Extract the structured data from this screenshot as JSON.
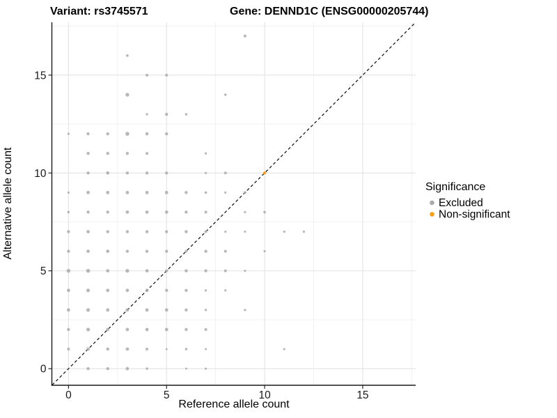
{
  "figure": {
    "title_left": "Variant: rs3745571",
    "title_right": "Gene: DENND1C (ENSG00000205744)"
  },
  "axes": {
    "x_label": "Reference allele count",
    "y_label": "Alternative allele count",
    "x_tick_labels": [
      "0",
      "5",
      "10",
      "15"
    ],
    "y_tick_labels": [
      "0",
      "5",
      "10",
      "15"
    ]
  },
  "legend": {
    "title": "Significance",
    "items": [
      {
        "label": "Excluded",
        "color": "#ababab"
      },
      {
        "label": "Non-significant",
        "color": "#fb9e17"
      }
    ]
  },
  "colors": {
    "excluded_point": "#ababab",
    "non_significant_point": "#fb9e17",
    "axis_line": "#1a1a1a",
    "identity_line": "#111111",
    "grid_major": "#e3e3e3",
    "grid_minor": "#efefef",
    "background": "#ffffff"
  },
  "chart_data": {
    "type": "scatter",
    "title": "Variant: rs3745571 — Gene: DENND1C (ENSG00000205744)",
    "xlabel": "Reference allele count",
    "ylabel": "Alternative allele count",
    "xlim": [
      -0.83,
      17.7
    ],
    "ylim": [
      -0.83,
      17.7
    ],
    "x_major_ticks": [
      0,
      5,
      10,
      15
    ],
    "y_major_ticks": [
      0,
      5,
      10,
      15
    ],
    "x_minor_ticks": [
      2.5,
      7.5,
      12.5,
      17.5
    ],
    "y_minor_ticks": [
      2.5,
      7.5,
      12.5,
      17.5
    ],
    "grid": true,
    "legend_position": "right",
    "identity_line": {
      "style": "dashed",
      "equation": "y = x"
    },
    "point_format": "[x, y, radius_px]",
    "series": [
      {
        "name": "Excluded",
        "color": "#ababab",
        "opacity": 0.85,
        "points": [
          [
            9,
            17,
            2.1
          ],
          [
            3,
            16,
            1.9
          ],
          [
            4,
            15,
            2.0
          ],
          [
            5,
            15,
            2.0
          ],
          [
            3,
            14,
            2.7
          ],
          [
            8,
            14,
            1.8
          ],
          [
            4,
            13,
            1.7
          ],
          [
            5,
            13,
            2.2
          ],
          [
            6,
            13,
            1.8
          ],
          [
            0,
            12,
            1.6
          ],
          [
            1,
            12,
            2.2
          ],
          [
            2,
            12,
            2.2
          ],
          [
            3,
            12,
            2.8
          ],
          [
            4,
            12,
            2.3
          ],
          [
            5,
            12,
            2.2
          ],
          [
            1,
            11,
            2.2
          ],
          [
            2,
            11,
            2.2
          ],
          [
            3,
            11,
            2.2
          ],
          [
            4,
            11,
            2.0
          ],
          [
            7,
            11,
            1.6
          ],
          [
            1,
            10,
            2.2
          ],
          [
            2,
            10,
            2.4
          ],
          [
            3,
            10,
            2.2
          ],
          [
            4,
            10,
            2.2
          ],
          [
            5,
            10,
            2.2
          ],
          [
            7,
            10,
            1.6
          ],
          [
            8,
            10,
            2.0
          ],
          [
            0,
            9,
            1.6
          ],
          [
            1,
            9,
            2.4
          ],
          [
            2,
            9,
            2.4
          ],
          [
            3,
            9,
            2.4
          ],
          [
            4,
            9,
            2.4
          ],
          [
            5,
            9,
            2.4
          ],
          [
            6,
            9,
            2.2
          ],
          [
            7,
            9,
            1.8
          ],
          [
            8,
            9,
            1.6
          ],
          [
            9,
            9,
            2.0
          ],
          [
            0,
            8,
            1.8
          ],
          [
            1,
            8,
            2.2
          ],
          [
            2,
            8,
            2.2
          ],
          [
            3,
            8,
            2.4
          ],
          [
            4,
            8,
            2.4
          ],
          [
            5,
            8,
            2.4
          ],
          [
            6,
            8,
            2.2
          ],
          [
            7,
            8,
            2.0
          ],
          [
            9,
            8,
            1.6
          ],
          [
            10,
            8,
            1.9
          ],
          [
            0,
            7,
            2.2
          ],
          [
            1,
            7,
            2.4
          ],
          [
            2,
            7,
            2.2
          ],
          [
            3,
            7,
            2.2
          ],
          [
            4,
            7,
            2.2
          ],
          [
            5,
            7,
            2.2
          ],
          [
            6,
            7,
            2.2
          ],
          [
            7,
            7,
            2.0
          ],
          [
            8,
            7,
            1.6
          ],
          [
            9,
            7,
            1.6
          ],
          [
            11,
            7,
            1.7
          ],
          [
            12,
            7,
            1.7
          ],
          [
            0,
            6,
            2.2
          ],
          [
            1,
            6,
            2.4
          ],
          [
            2,
            6,
            2.4
          ],
          [
            3,
            6,
            2.2
          ],
          [
            4,
            6,
            2.2
          ],
          [
            5,
            6,
            2.2
          ],
          [
            6,
            6,
            2.0
          ],
          [
            7,
            6,
            2.2
          ],
          [
            8,
            6,
            2.0
          ],
          [
            10,
            6,
            1.6
          ],
          [
            0,
            5,
            2.8
          ],
          [
            1,
            5,
            2.8
          ],
          [
            2,
            5,
            2.4
          ],
          [
            3,
            5,
            2.6
          ],
          [
            4,
            5,
            2.4
          ],
          [
            5,
            5,
            2.2
          ],
          [
            6,
            5,
            2.2
          ],
          [
            7,
            5,
            2.2
          ],
          [
            8,
            5,
            2.0
          ],
          [
            9,
            5,
            1.6
          ],
          [
            0,
            4,
            2.4
          ],
          [
            1,
            4,
            2.6
          ],
          [
            2,
            4,
            2.4
          ],
          [
            3,
            4,
            2.4
          ],
          [
            4,
            4,
            2.4
          ],
          [
            5,
            4,
            2.2
          ],
          [
            6,
            4,
            2.2
          ],
          [
            7,
            4,
            1.6
          ],
          [
            8,
            4,
            1.6
          ],
          [
            0,
            3,
            2.4
          ],
          [
            1,
            3,
            2.6
          ],
          [
            2,
            3,
            2.4
          ],
          [
            3,
            3,
            2.4
          ],
          [
            4,
            3,
            2.4
          ],
          [
            5,
            3,
            2.4
          ],
          [
            6,
            3,
            2.2
          ],
          [
            7,
            3,
            1.7
          ],
          [
            9,
            3,
            1.7
          ],
          [
            0,
            2,
            2.2
          ],
          [
            1,
            2,
            2.6
          ],
          [
            2,
            2,
            2.4
          ],
          [
            3,
            2,
            2.4
          ],
          [
            4,
            2,
            2.4
          ],
          [
            5,
            2,
            2.4
          ],
          [
            6,
            2,
            2.2
          ],
          [
            7,
            2,
            2.0
          ],
          [
            0,
            1,
            2.0
          ],
          [
            1,
            1,
            2.4
          ],
          [
            2,
            1,
            2.2
          ],
          [
            3,
            1,
            2.4
          ],
          [
            4,
            1,
            2.0
          ],
          [
            5,
            1,
            1.5
          ],
          [
            6,
            1,
            1.8
          ],
          [
            7,
            1,
            1.5
          ],
          [
            11,
            1,
            1.6
          ],
          [
            1,
            0,
            2.2
          ],
          [
            2,
            0,
            2.2
          ],
          [
            3,
            0,
            2.4
          ],
          [
            4,
            0,
            1.8
          ],
          [
            6,
            0,
            1.5
          ],
          [
            7,
            0,
            1.6
          ]
        ]
      },
      {
        "name": "Non-significant",
        "color": "#fb9e17",
        "opacity": 1,
        "points": [
          [
            10,
            10,
            2.1
          ]
        ]
      }
    ]
  }
}
